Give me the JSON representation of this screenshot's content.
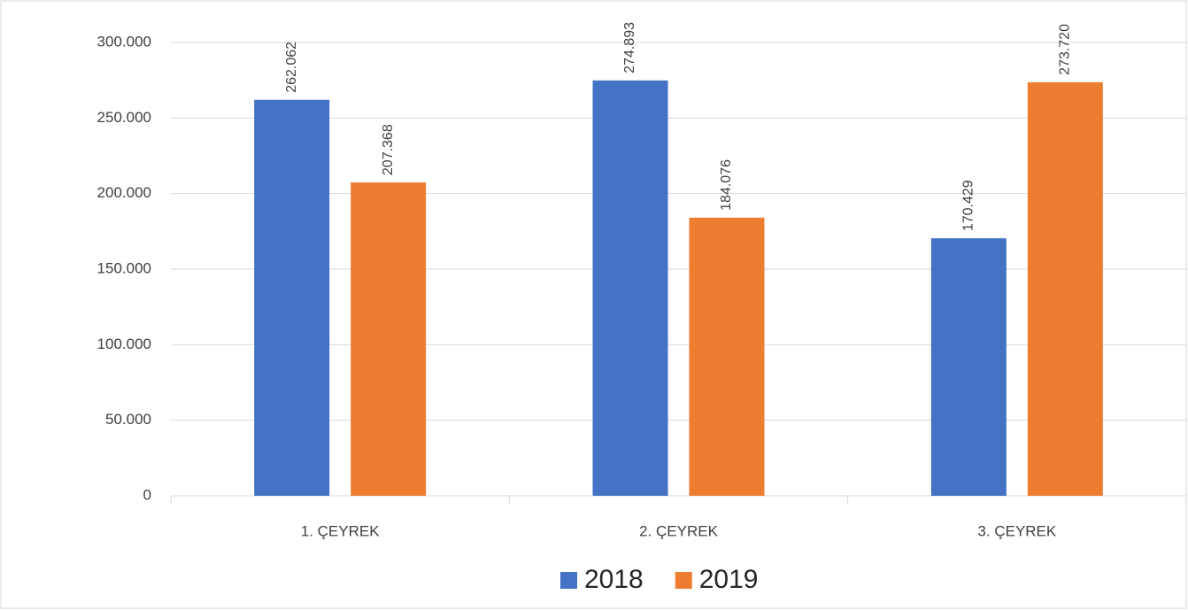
{
  "chart_data": {
    "type": "bar",
    "categories": [
      "1. ÇEYREK",
      "2. ÇEYREK",
      "3. ÇEYREK"
    ],
    "series": [
      {
        "name": "2018",
        "color": "#4472c4",
        "values": [
          262062,
          274893,
          170429
        ],
        "value_labels": [
          "262.062",
          "274.893",
          "170.429"
        ]
      },
      {
        "name": "2019",
        "color": "#ed7d31",
        "values": [
          207368,
          184076,
          273720
        ],
        "value_labels": [
          "207.368",
          "184.076",
          "273.720"
        ]
      }
    ],
    "ylim": [
      0,
      300000
    ],
    "yticks": [
      0,
      {
        "value": 50000,
        "label": "50.000"
      },
      {
        "value": 100000,
        "label": "100.000"
      },
      {
        "value": 150000,
        "label": "150.000"
      },
      {
        "value": 200000,
        "label": "200.000"
      },
      {
        "value": 250000,
        "label": "250.000"
      },
      {
        "value": 300000,
        "label": "300.000"
      }
    ],
    "grid": true,
    "legend": "bottom"
  }
}
